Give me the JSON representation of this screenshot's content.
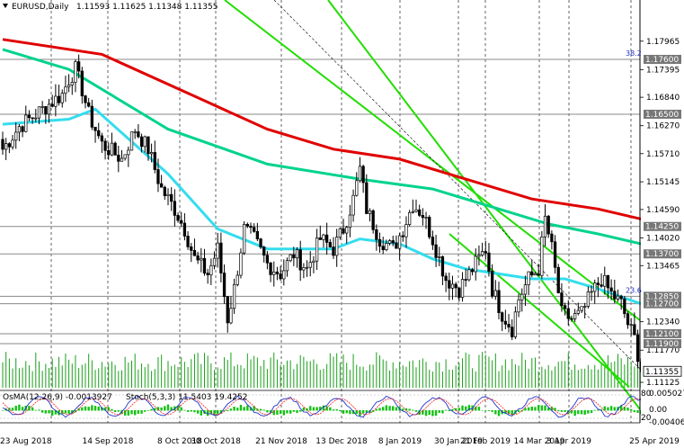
{
  "header": {
    "symbol": "EURUSD,Daily",
    "ohlc": "1.11593 1.11625 1.11348 1.11355"
  },
  "osc_label": {
    "macd": "OsMA(12,26,9) -0.0013927",
    "stoch": "Stoch(5,3,3) 11.5403 19.4252"
  },
  "osc_axis": [
    "0.0050275",
    "0.00",
    "-0.004065",
    "80",
    "20"
  ],
  "chart_data": {
    "type": "candlestick",
    "symbol": "EURUSD",
    "timeframe": "Daily",
    "ylim": [
      1.11125,
      1.18195
    ],
    "price_ticks": [
      "1.17965",
      "1.17395",
      "1.16840",
      "1.16270",
      "1.15710",
      "1.15145",
      "1.14590",
      "1.14020",
      "1.13465",
      "1.12340",
      "1.11770",
      "1.11125"
    ],
    "level_labels": [
      "1.17600",
      "1.16500",
      "1.14250",
      "1.13700",
      "1.12850",
      "1.12700",
      "1.12100",
      "1.11900"
    ],
    "fib_labels": [
      "38.2",
      "23.6"
    ],
    "current_price": "1.11355",
    "date_labels": [
      "23 Aug 2018",
      "14 Sep 2018",
      "8 Oct 2018",
      "30 Oct 2018",
      "21 Nov 2018",
      "13 Dec 2018",
      "8 Jan 2019",
      "30 Jan 2019",
      "21 Feb 2019",
      "14 Mar 2019",
      "3 Apr 2019",
      "25 Apr 2019"
    ],
    "close_anchors": [
      [
        0,
        1.158
      ],
      [
        5,
        1.1625
      ],
      [
        12,
        1.166
      ],
      [
        18,
        1.169
      ],
      [
        20,
        1.172
      ],
      [
        22,
        1.174
      ],
      [
        24,
        1.17
      ],
      [
        26,
        1.165
      ],
      [
        30,
        1.159
      ],
      [
        36,
        1.156
      ],
      [
        40,
        1.162
      ],
      [
        44,
        1.158
      ],
      [
        48,
        1.15
      ],
      [
        52,
        1.146
      ],
      [
        55,
        1.142
      ],
      [
        58,
        1.136
      ],
      [
        62,
        1.133
      ],
      [
        65,
        1.138
      ],
      [
        68,
        1.124
      ],
      [
        70,
        1.13
      ],
      [
        73,
        1.142
      ],
      [
        76,
        1.14
      ],
      [
        80,
        1.135
      ],
      [
        84,
        1.133
      ],
      [
        88,
        1.137
      ],
      [
        92,
        1.134
      ],
      [
        96,
        1.14
      ],
      [
        100,
        1.138
      ],
      [
        103,
        1.142
      ],
      [
        106,
        1.148
      ],
      [
        108,
        1.154
      ],
      [
        110,
        1.146
      ],
      [
        114,
        1.14
      ],
      [
        118,
        1.138
      ],
      [
        121,
        1.142
      ],
      [
        124,
        1.147
      ],
      [
        127,
        1.145
      ],
      [
        130,
        1.14
      ],
      [
        134,
        1.132
      ],
      [
        138,
        1.13
      ],
      [
        142,
        1.134
      ],
      [
        146,
        1.138
      ],
      [
        148,
        1.13
      ],
      [
        151,
        1.125
      ],
      [
        154,
        1.122
      ],
      [
        156,
        1.128
      ],
      [
        159,
        1.132
      ],
      [
        162,
        1.134
      ],
      [
        164,
        1.144
      ],
      [
        166,
        1.138
      ],
      [
        169,
        1.125
      ],
      [
        172,
        1.124
      ],
      [
        175,
        1.125
      ],
      [
        178,
        1.129
      ],
      [
        181,
        1.132
      ],
      [
        184,
        1.129
      ],
      [
        187,
        1.127
      ],
      [
        189,
        1.123
      ],
      [
        191,
        1.12
      ],
      [
        193,
        1.114
      ]
    ],
    "ma_fast": [
      [
        0,
        1.163
      ],
      [
        20,
        1.164
      ],
      [
        28,
        1.166
      ],
      [
        50,
        1.153
      ],
      [
        65,
        1.142
      ],
      [
        80,
        1.138
      ],
      [
        100,
        1.138
      ],
      [
        108,
        1.14
      ],
      [
        120,
        1.139
      ],
      [
        130,
        1.136
      ],
      [
        140,
        1.134
      ],
      [
        150,
        1.133
      ],
      [
        160,
        1.132
      ],
      [
        170,
        1.132
      ],
      [
        180,
        1.13
      ],
      [
        193,
        1.127
      ]
    ],
    "ma_mid": [
      [
        0,
        1.178
      ],
      [
        20,
        1.174
      ],
      [
        50,
        1.162
      ],
      [
        80,
        1.155
      ],
      [
        108,
        1.152
      ],
      [
        130,
        1.15
      ],
      [
        150,
        1.146
      ],
      [
        165,
        1.143
      ],
      [
        180,
        1.141
      ],
      [
        193,
        1.139
      ]
    ],
    "ma_slow": [
      [
        0,
        1.18
      ],
      [
        30,
        1.177
      ],
      [
        60,
        1.168
      ],
      [
        80,
        1.162
      ],
      [
        100,
        1.158
      ],
      [
        120,
        1.156
      ],
      [
        140,
        1.152
      ],
      [
        160,
        1.148
      ],
      [
        180,
        1.146
      ],
      [
        193,
        1.144
      ]
    ]
  }
}
